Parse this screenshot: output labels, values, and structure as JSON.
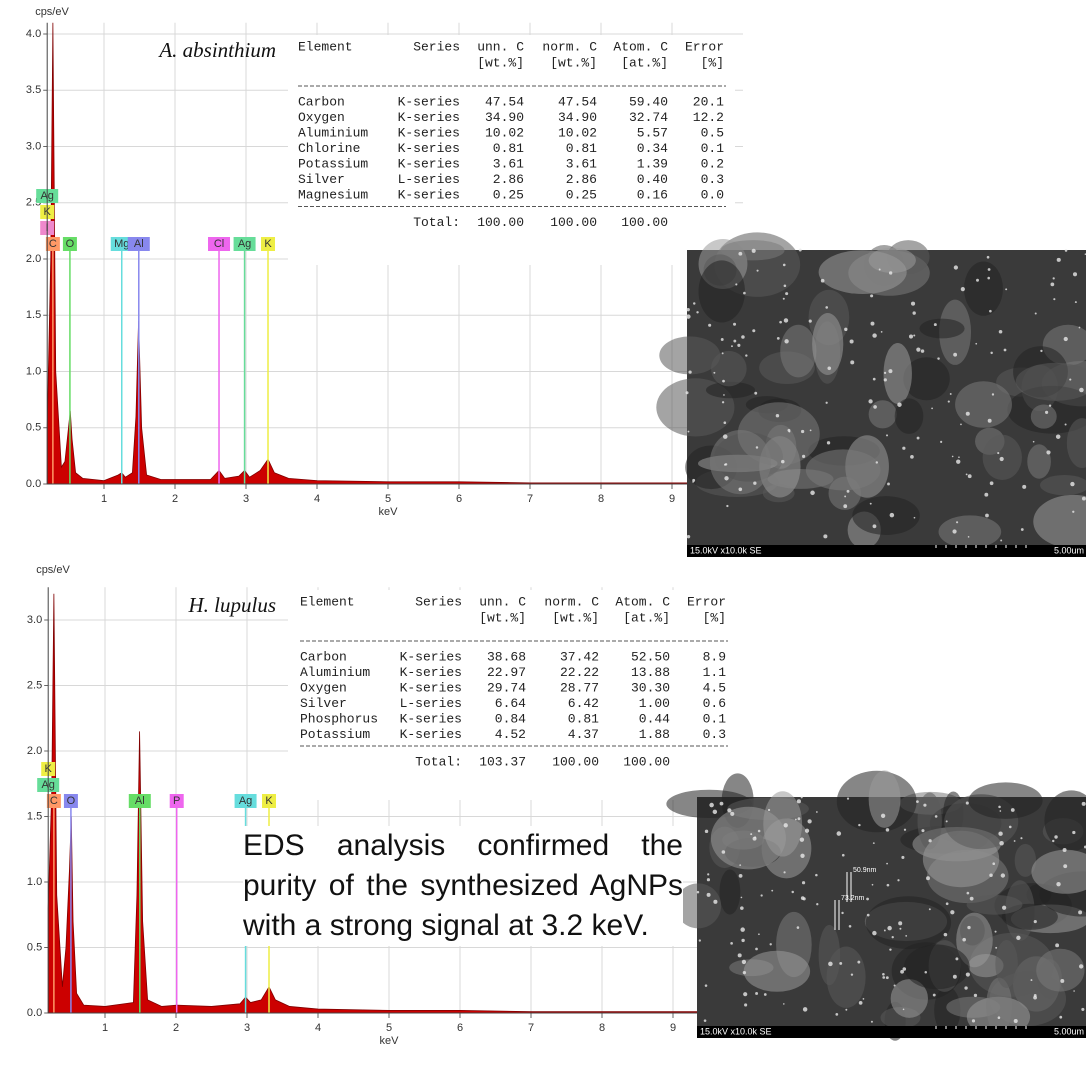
{
  "chart_data": [
    {
      "type": "area",
      "title": "A. absinthium",
      "y_label": "cps/eV",
      "x_label": "keV",
      "color": "#cc0000",
      "grid": true,
      "xlim": [
        0.2,
        10
      ],
      "xticks": [
        1,
        2,
        3,
        4,
        5,
        6,
        7,
        8,
        9
      ],
      "ylim": [
        0,
        4.1
      ],
      "yticks": [
        {
          "value": 0,
          "label": "0.0"
        },
        0.5,
        {
          "value": 1,
          "label": "1.0"
        },
        1.5,
        {
          "value": 2,
          "label": "2.0"
        },
        2.5,
        {
          "value": 3,
          "label": "3.0"
        },
        3.5,
        {
          "value": 4,
          "label": "4.0"
        }
      ],
      "x": [
        0.2,
        0.25,
        0.28,
        0.32,
        0.4,
        0.45,
        0.5,
        0.525,
        0.55,
        0.6,
        0.7,
        1.0,
        1.2,
        1.25,
        1.3,
        1.4,
        1.45,
        1.487,
        1.53,
        1.6,
        1.8,
        2.5,
        2.62,
        2.7,
        2.9,
        2.98,
        3.05,
        3.2,
        3.31,
        3.4,
        3.6,
        4,
        5,
        6,
        7,
        8,
        9,
        10
      ],
      "values": [
        0.5,
        2.0,
        4.1,
        1.0,
        0.15,
        0.2,
        0.5,
        0.65,
        0.4,
        0.1,
        0.05,
        0.03,
        0.08,
        0.1,
        0.06,
        0.1,
        0.6,
        1.45,
        0.5,
        0.08,
        0.04,
        0.04,
        0.12,
        0.05,
        0.07,
        0.12,
        0.06,
        0.12,
        0.22,
        0.1,
        0.05,
        0.03,
        0.02,
        0.02,
        0.01,
        0.01,
        0.01,
        0.01
      ],
      "peak_markers": [
        {
          "label": "C",
          "x": 0.28,
          "color": "#ff9966"
        },
        {
          "label": "O",
          "x": 0.52,
          "color": "#66dd66"
        },
        {
          "label": "Mg",
          "x": 1.25,
          "color": "#66dddd"
        },
        {
          "label": "Al",
          "x": 1.49,
          "color": "#8888ee"
        },
        {
          "label": "Cl",
          "x": 2.62,
          "color": "#ee66ee"
        },
        {
          "label": "Ag",
          "x": 2.98,
          "color": "#66dd99"
        },
        {
          "label": "K",
          "x": 3.31,
          "color": "#eeee44"
        },
        {
          "label": "I",
          "x": 0.2,
          "color": "#ee88cc"
        },
        {
          "label": "K",
          "x": 0.2,
          "color": "#eeee44"
        },
        {
          "label": "Ag",
          "x": 0.2,
          "color": "#66dd99"
        }
      ]
    },
    {
      "type": "area",
      "title": "H. lupulus",
      "y_label": "cps/eV",
      "x_label": "keV",
      "color": "#cc0000",
      "grid": true,
      "xlim": [
        0.2,
        10
      ],
      "xticks": [
        1,
        2,
        3,
        4,
        5,
        6,
        7,
        8,
        9
      ],
      "ylim": [
        0,
        3.25
      ],
      "yticks": [
        {
          "value": 0,
          "label": "0.0"
        },
        0.5,
        {
          "value": 1,
          "label": "1.0"
        },
        1.5,
        {
          "value": 2,
          "label": "2.0"
        },
        2.5,
        {
          "value": 3,
          "label": "3.0"
        }
      ],
      "x": [
        0.2,
        0.25,
        0.28,
        0.32,
        0.4,
        0.45,
        0.5,
        0.525,
        0.55,
        0.6,
        0.7,
        1.0,
        1.4,
        1.45,
        1.487,
        1.53,
        1.6,
        1.8,
        2.01,
        2.5,
        2.9,
        2.98,
        3.05,
        3.2,
        3.31,
        3.4,
        3.6,
        4,
        5,
        6,
        7,
        8,
        9,
        10
      ],
      "values": [
        0.8,
        1.7,
        3.2,
        0.9,
        0.2,
        0.5,
        1.1,
        1.5,
        0.7,
        0.15,
        0.06,
        0.05,
        0.08,
        0.9,
        2.15,
        0.7,
        0.1,
        0.05,
        0.06,
        0.05,
        0.07,
        0.12,
        0.08,
        0.1,
        0.2,
        0.1,
        0.05,
        0.03,
        0.02,
        0.02,
        0.01,
        0.01,
        0.01,
        0.01
      ],
      "peak_markers": [
        {
          "label": "C",
          "x": 0.28,
          "color": "#ff9966"
        },
        {
          "label": "O",
          "x": 0.52,
          "color": "#8888ee"
        },
        {
          "label": "Al",
          "x": 1.49,
          "color": "#66dd66"
        },
        {
          "label": "P",
          "x": 2.01,
          "color": "#ee66ee"
        },
        {
          "label": "Ag",
          "x": 2.98,
          "color": "#66dddd"
        },
        {
          "label": "K",
          "x": 3.31,
          "color": "#eeee44"
        },
        {
          "label": "Ag",
          "x": 0.2,
          "color": "#66dd99"
        },
        {
          "label": "K",
          "x": 0.2,
          "color": "#eeee44"
        }
      ]
    }
  ],
  "tables": [
    {
      "header_row1": [
        "Element",
        "Series",
        "unn. C",
        "norm. C",
        "Atom. C",
        "Error"
      ],
      "header_row2": [
        "",
        "",
        "[wt.%]",
        "[wt.%]",
        "[at.%]",
        "[%]"
      ],
      "rows": [
        [
          "Carbon",
          "K-series",
          "47.54",
          "47.54",
          "59.40",
          "20.1"
        ],
        [
          "Oxygen",
          "K-series",
          "34.90",
          "34.90",
          "32.74",
          "12.2"
        ],
        [
          "Aluminium",
          "K-series",
          "10.02",
          "10.02",
          "5.57",
          "0.5"
        ],
        [
          "Chlorine",
          "K-series",
          "0.81",
          "0.81",
          "0.34",
          "0.1"
        ],
        [
          "Potassium",
          "K-series",
          "3.61",
          "3.61",
          "1.39",
          "0.2"
        ],
        [
          "Silver",
          "L-series",
          "2.86",
          "2.86",
          "0.40",
          "0.3"
        ],
        [
          "Magnesium",
          "K-series",
          "0.25",
          "0.25",
          "0.16",
          "0.0"
        ]
      ],
      "total": [
        "Total:",
        "100.00",
        "100.00",
        "100.00"
      ]
    },
    {
      "header_row1": [
        "Element",
        "Series",
        "unn. C",
        "norm. C",
        "Atom. C",
        "Error"
      ],
      "header_row2": [
        "",
        "",
        "[wt.%]",
        "[wt.%]",
        "[at.%]",
        "[%]"
      ],
      "rows": [
        [
          "Carbon",
          "K-series",
          "38.68",
          "37.42",
          "52.50",
          "8.9"
        ],
        [
          "Aluminium",
          "K-series",
          "22.97",
          "22.22",
          "13.88",
          "1.1"
        ],
        [
          "Oxygen",
          "K-series",
          "29.74",
          "28.77",
          "30.30",
          "4.5"
        ],
        [
          "Silver",
          "L-series",
          "6.64",
          "6.42",
          "1.00",
          "0.6"
        ],
        [
          "Phosphorus",
          "K-series",
          "0.84",
          "0.81",
          "0.44",
          "0.1"
        ],
        [
          "Potassium",
          "K-series",
          "4.52",
          "4.37",
          "1.88",
          "0.3"
        ]
      ],
      "total": [
        "Total:",
        "103.37",
        "100.00",
        "100.00"
      ]
    }
  ],
  "sem_images": [
    {
      "left_caption": "15.0kV x10.0k SE",
      "right_caption": "5.00um"
    },
    {
      "left_caption": "15.0kV x10.0k SE",
      "right_caption": "5.00um",
      "measurements": [
        "50.9nm",
        "73.2nm"
      ]
    }
  ],
  "caption": "EDS analysis confirmed the purity of the synthesized AgNPs with a strong signal at 3.2 keV."
}
